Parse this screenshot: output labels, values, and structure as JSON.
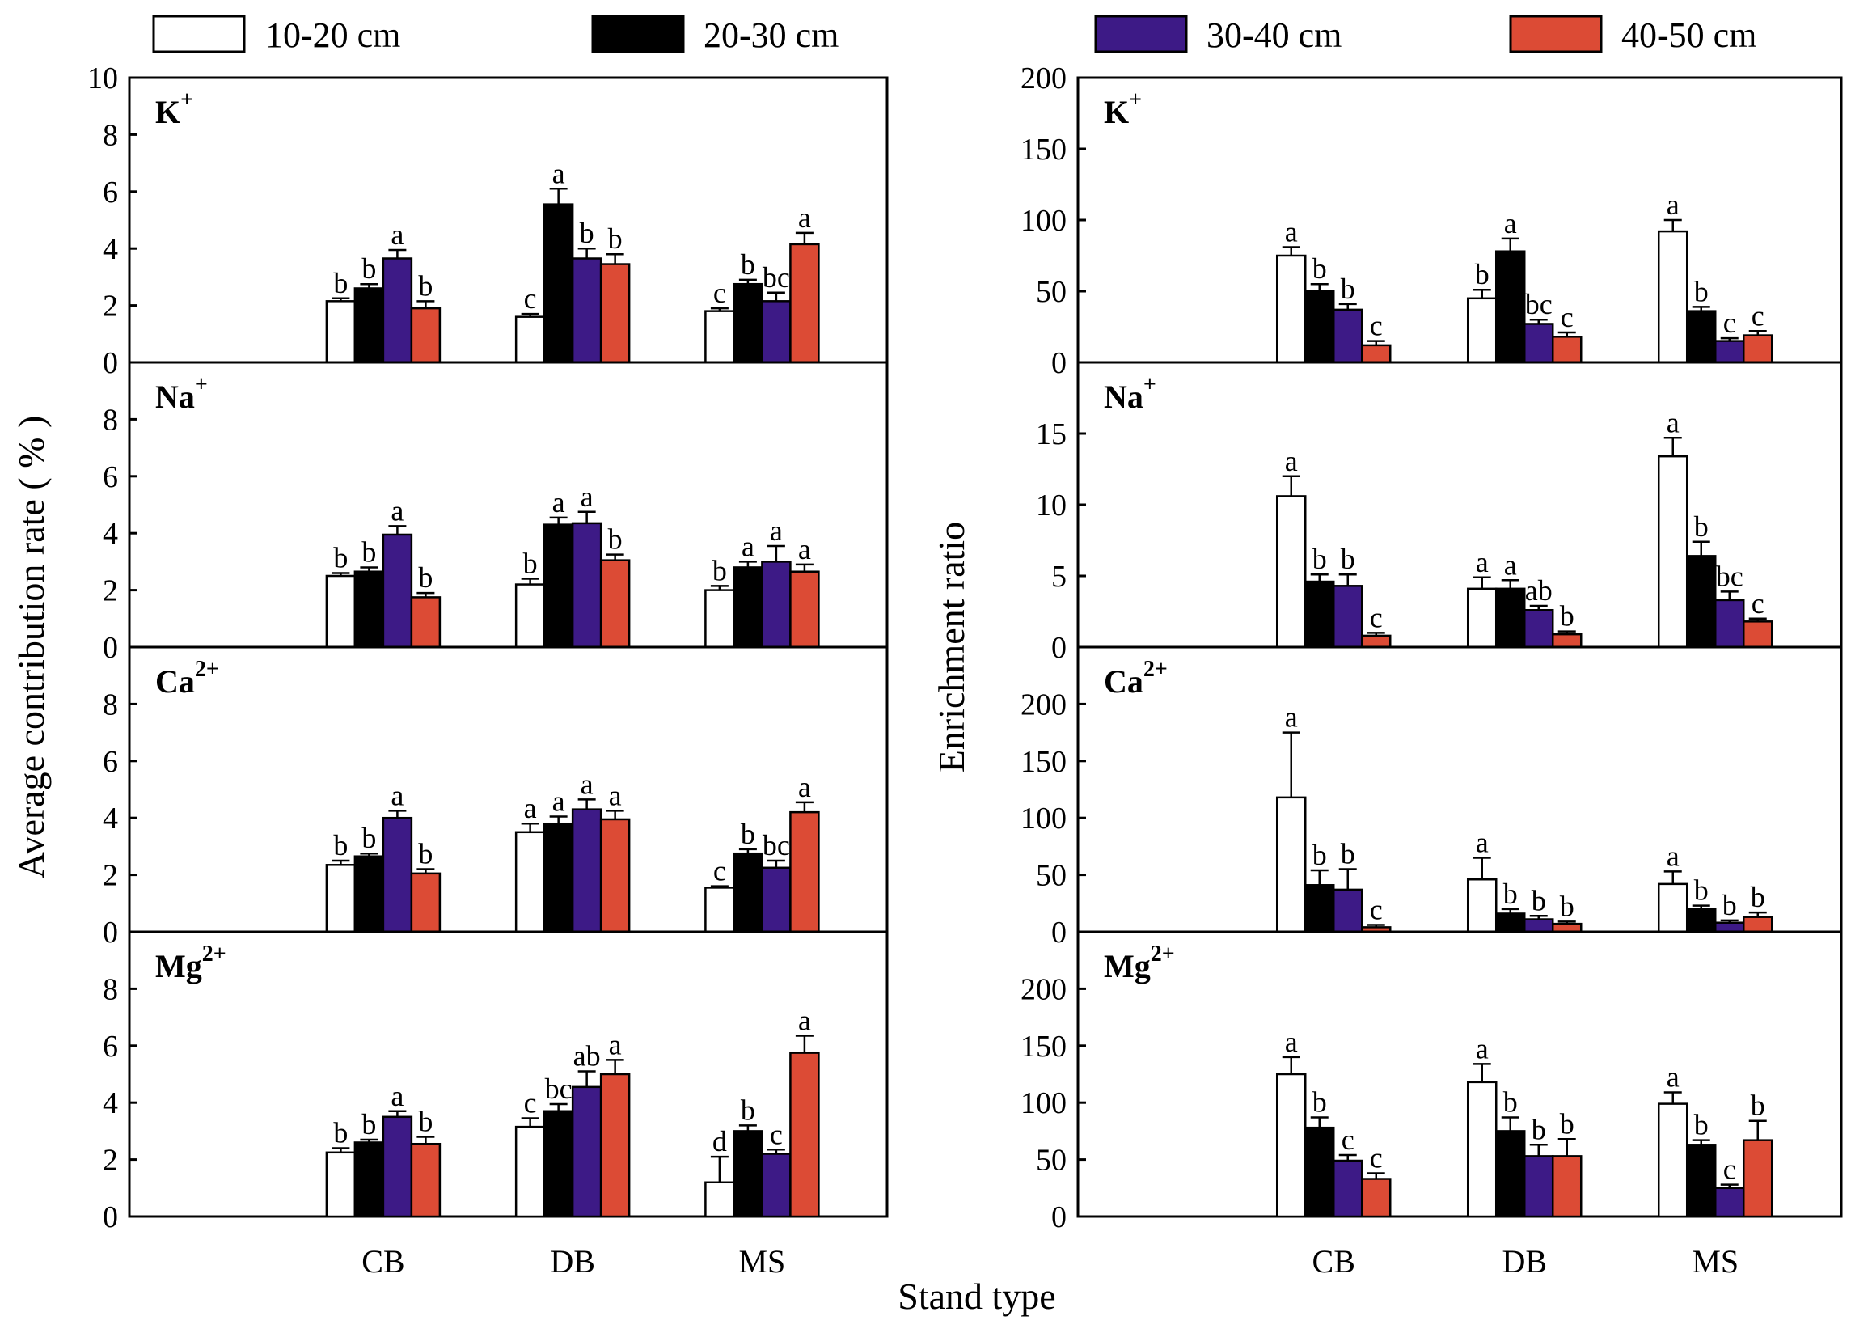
{
  "chart_data": {
    "type": "bar",
    "xlabel": "Stand type",
    "categories": [
      "CB",
      "DB",
      "MS"
    ],
    "legend": [
      {
        "name": "10-20 cm",
        "color": "#ffffff"
      },
      {
        "name": "20-30 cm",
        "color": "#000000"
      },
      {
        "name": "30-40 cm",
        "color": "#3d1a86"
      },
      {
        "name": "40-50 cm",
        "color": "#dc4b35"
      }
    ],
    "columns": [
      {
        "id": "left",
        "ylabel": "Average contribution rate ( % )",
        "panels": [
          {
            "ion": "K",
            "charge": "+",
            "ylim": [
              0,
              10
            ],
            "yticks": [
              0,
              2,
              4,
              6,
              8,
              10
            ],
            "series": [
              {
                "name": "10-20 cm",
                "values": [
                  2.15,
                  1.6,
                  1.8
                ],
                "errors": [
                  0.1,
                  0.1,
                  0.1
                ],
                "sig": [
                  "b",
                  "c",
                  "c"
                ]
              },
              {
                "name": "20-30 cm",
                "values": [
                  2.6,
                  5.55,
                  2.75
                ],
                "errors": [
                  0.15,
                  0.55,
                  0.15
                ],
                "sig": [
                  "b",
                  "a",
                  "b"
                ]
              },
              {
                "name": "30-40 cm",
                "values": [
                  3.65,
                  3.65,
                  2.15
                ],
                "errors": [
                  0.3,
                  0.35,
                  0.3
                ],
                "sig": [
                  "a",
                  "b",
                  "bc"
                ]
              },
              {
                "name": "40-50 cm",
                "values": [
                  1.9,
                  3.45,
                  4.15
                ],
                "errors": [
                  0.25,
                  0.35,
                  0.4
                ],
                "sig": [
                  "b",
                  "b",
                  "a"
                ]
              }
            ]
          },
          {
            "ion": "Na",
            "charge": "+",
            "ylim": [
              0,
              10
            ],
            "yticks": [
              0,
              2,
              4,
              6,
              8
            ],
            "series": [
              {
                "name": "10-20 cm",
                "values": [
                  2.5,
                  2.2,
                  2.0
                ],
                "errors": [
                  0.1,
                  0.2,
                  0.15
                ],
                "sig": [
                  "b",
                  "b",
                  "b"
                ]
              },
              {
                "name": "20-30 cm",
                "values": [
                  2.65,
                  4.3,
                  2.8
                ],
                "errors": [
                  0.15,
                  0.25,
                  0.2
                ],
                "sig": [
                  "b",
                  "a",
                  "a"
                ]
              },
              {
                "name": "30-40 cm",
                "values": [
                  3.95,
                  4.35,
                  3.0
                ],
                "errors": [
                  0.3,
                  0.4,
                  0.55
                ],
                "sig": [
                  "a",
                  "a",
                  "a"
                ]
              },
              {
                "name": "40-50 cm",
                "values": [
                  1.75,
                  3.05,
                  2.65
                ],
                "errors": [
                  0.15,
                  0.2,
                  0.25
                ],
                "sig": [
                  "b",
                  "b",
                  "a"
                ]
              }
            ]
          },
          {
            "ion": "Ca",
            "charge": "2+",
            "ylim": [
              0,
              10
            ],
            "yticks": [
              0,
              2,
              4,
              6,
              8
            ],
            "series": [
              {
                "name": "10-20 cm",
                "values": [
                  2.35,
                  3.5,
                  1.55
                ],
                "errors": [
                  0.15,
                  0.3,
                  0.05
                ],
                "sig": [
                  "b",
                  "a",
                  "c"
                ]
              },
              {
                "name": "20-30 cm",
                "values": [
                  2.65,
                  3.8,
                  2.75
                ],
                "errors": [
                  0.1,
                  0.25,
                  0.15
                ],
                "sig": [
                  "b",
                  "a",
                  "b"
                ]
              },
              {
                "name": "30-40 cm",
                "values": [
                  4.0,
                  4.3,
                  2.25
                ],
                "errors": [
                  0.25,
                  0.35,
                  0.25
                ],
                "sig": [
                  "a",
                  "a",
                  "bc"
                ]
              },
              {
                "name": "40-50 cm",
                "values": [
                  2.05,
                  3.95,
                  4.2
                ],
                "errors": [
                  0.15,
                  0.3,
                  0.35
                ],
                "sig": [
                  "b",
                  "a",
                  "a"
                ]
              }
            ]
          },
          {
            "ion": "Mg",
            "charge": "2+",
            "ylim": [
              0,
              10
            ],
            "yticks": [
              0,
              2,
              4,
              6,
              8
            ],
            "series": [
              {
                "name": "10-20 cm",
                "values": [
                  2.25,
                  3.15,
                  1.2
                ],
                "errors": [
                  0.15,
                  0.3,
                  0.9
                ],
                "sig": [
                  "b",
                  "c",
                  "d"
                ]
              },
              {
                "name": "20-30 cm",
                "values": [
                  2.6,
                  3.7,
                  3.0
                ],
                "errors": [
                  0.1,
                  0.25,
                  0.2
                ],
                "sig": [
                  "b",
                  "bc",
                  "b"
                ]
              },
              {
                "name": "30-40 cm",
                "values": [
                  3.5,
                  4.55,
                  2.2
                ],
                "errors": [
                  0.2,
                  0.55,
                  0.15
                ],
                "sig": [
                  "a",
                  "ab",
                  "c"
                ]
              },
              {
                "name": "40-50 cm",
                "values": [
                  2.55,
                  5.0,
                  5.75
                ],
                "errors": [
                  0.25,
                  0.5,
                  0.6
                ],
                "sig": [
                  "b",
                  "a",
                  "a"
                ]
              }
            ]
          }
        ]
      },
      {
        "id": "right",
        "ylabel": "Enrichment ratio",
        "panels": [
          {
            "ion": "K",
            "charge": "+",
            "ylim": [
              0,
              200
            ],
            "yticks": [
              0,
              50,
              100,
              150,
              200
            ],
            "series": [
              {
                "name": "10-20 cm",
                "values": [
                  75,
                  45,
                  92
                ],
                "errors": [
                  6,
                  6,
                  8
                ],
                "sig": [
                  "a",
                  "b",
                  "a"
                ]
              },
              {
                "name": "20-30 cm",
                "values": [
                  50,
                  78,
                  36
                ],
                "errors": [
                  5,
                  9,
                  3
                ],
                "sig": [
                  "b",
                  "a",
                  "b"
                ]
              },
              {
                "name": "30-40 cm",
                "values": [
                  37,
                  27,
                  15
                ],
                "errors": [
                  4,
                  3,
                  2
                ],
                "sig": [
                  "b",
                  "bc",
                  "c"
                ]
              },
              {
                "name": "40-50 cm",
                "values": [
                  12,
                  18,
                  19
                ],
                "errors": [
                  3,
                  3,
                  3
                ],
                "sig": [
                  "c",
                  "c",
                  "c"
                ]
              }
            ]
          },
          {
            "ion": "Na",
            "charge": "+",
            "ylim": [
              0,
              20
            ],
            "yticks": [
              0,
              5,
              10,
              15
            ],
            "series": [
              {
                "name": "10-20 cm",
                "values": [
                  10.6,
                  4.1,
                  13.4
                ],
                "errors": [
                  1.4,
                  0.8,
                  1.3
                ],
                "sig": [
                  "a",
                  "a",
                  "a"
                ]
              },
              {
                "name": "20-30 cm",
                "values": [
                  4.6,
                  4.1,
                  6.4
                ],
                "errors": [
                  0.5,
                  0.6,
                  1.0
                ],
                "sig": [
                  "b",
                  "a",
                  "b"
                ]
              },
              {
                "name": "30-40 cm",
                "values": [
                  4.3,
                  2.6,
                  3.3
                ],
                "errors": [
                  0.8,
                  0.3,
                  0.6
                ],
                "sig": [
                  "b",
                  "ab",
                  "bc"
                ]
              },
              {
                "name": "40-50 cm",
                "values": [
                  0.8,
                  0.9,
                  1.8
                ],
                "errors": [
                  0.2,
                  0.2,
                  0.2
                ],
                "sig": [
                  "c",
                  "b",
                  "c"
                ]
              }
            ]
          },
          {
            "ion": "Ca",
            "charge": "2+",
            "ylim": [
              0,
              250
            ],
            "yticks": [
              0,
              50,
              100,
              150,
              200
            ],
            "series": [
              {
                "name": "10-20 cm",
                "values": [
                  118,
                  46,
                  42
                ],
                "errors": [
                  57,
                  19,
                  11
                ],
                "sig": [
                  "a",
                  "a",
                  "a"
                ]
              },
              {
                "name": "20-30 cm",
                "values": [
                  41,
                  16,
                  20
                ],
                "errors": [
                  13,
                  4,
                  3
                ],
                "sig": [
                  "b",
                  "b",
                  "b"
                ]
              },
              {
                "name": "30-40 cm",
                "values": [
                  37,
                  11,
                  8
                ],
                "errors": [
                  18,
                  3,
                  2
                ],
                "sig": [
                  "b",
                  "b",
                  "b"
                ]
              },
              {
                "name": "40-50 cm",
                "values": [
                  4,
                  7,
                  13
                ],
                "errors": [
                  2,
                  2,
                  4
                ],
                "sig": [
                  "c",
                  "b",
                  "b"
                ]
              }
            ]
          },
          {
            "ion": "Mg",
            "charge": "2+",
            "ylim": [
              0,
              250
            ],
            "yticks": [
              0,
              50,
              100,
              150,
              200
            ],
            "series": [
              {
                "name": "10-20 cm",
                "values": [
                  125,
                  118,
                  99
                ],
                "errors": [
                  15,
                  16,
                  10
                ],
                "sig": [
                  "a",
                  "a",
                  "a"
                ]
              },
              {
                "name": "20-30 cm",
                "values": [
                  78,
                  75,
                  63
                ],
                "errors": [
                  9,
                  12,
                  4
                ],
                "sig": [
                  "b",
                  "b",
                  "b"
                ]
              },
              {
                "name": "30-40 cm",
                "values": [
                  49,
                  53,
                  25
                ],
                "errors": [
                  5,
                  10,
                  3
                ],
                "sig": [
                  "c",
                  "b",
                  "c"
                ]
              },
              {
                "name": "40-50 cm",
                "values": [
                  33,
                  53,
                  67
                ],
                "errors": [
                  5,
                  15,
                  17
                ],
                "sig": [
                  "c",
                  "b",
                  "b"
                ]
              }
            ]
          }
        ]
      }
    ]
  }
}
